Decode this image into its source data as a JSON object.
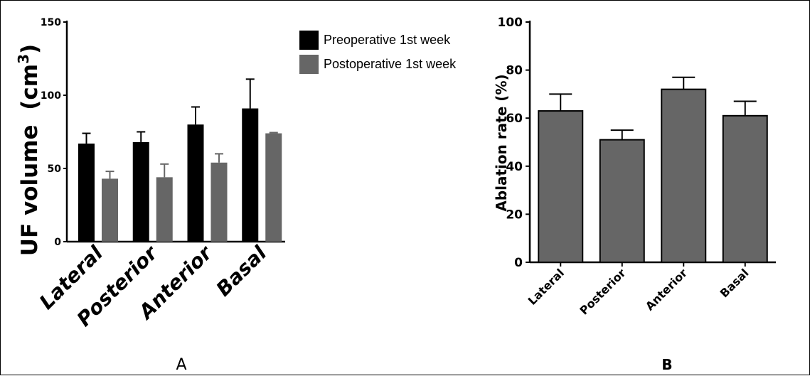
{
  "chart_data": [
    {
      "type": "bar",
      "ylabel_main": "UF volume",
      "ylabel_unit": "(cm",
      "ylabel_sup": "3",
      "ylabel_close": ")",
      "ylim": [
        0,
        150
      ],
      "yticks": [
        "0",
        "50",
        "100",
        "150"
      ],
      "categories": [
        "Lateral",
        "Posterior",
        "Anterior",
        "Basal"
      ],
      "series": [
        {
          "name": "Preoperative 1st week",
          "color": "#000000",
          "values": [
            67,
            68,
            80,
            91
          ],
          "errors": [
            7,
            7,
            12,
            20
          ]
        },
        {
          "name": "Postoperative 1st week",
          "color": "#666666",
          "values": [
            43,
            44,
            54,
            74
          ],
          "errors": [
            5,
            9,
            6,
            0.5
          ]
        }
      ],
      "legend_position": "top-right",
      "panel_label": "A"
    },
    {
      "type": "bar",
      "ylabel": "Ablation rate  (%)",
      "ylim": [
        0,
        100
      ],
      "yticks": [
        "0",
        "20",
        "40",
        "60",
        "80",
        "100"
      ],
      "categories": [
        "Lateral",
        "Posterior",
        "Anterior",
        "Basal"
      ],
      "series": [
        {
          "color": "#666666",
          "values": [
            63,
            51,
            72,
            61
          ],
          "errors": [
            7,
            4,
            5,
            6
          ]
        }
      ],
      "panel_label": "B"
    }
  ]
}
